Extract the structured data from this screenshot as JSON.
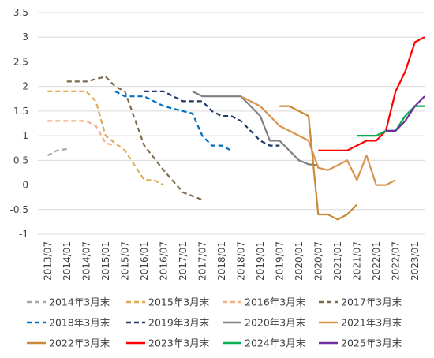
{
  "chart_data": {
    "type": "line",
    "title": "",
    "xlabel": "",
    "ylabel": "",
    "ylim": [
      -1,
      3.5
    ],
    "yticks": [
      "-1",
      "-0.5",
      "0",
      "0.5",
      "1",
      "1.5",
      "2",
      "2.5",
      "3",
      "3.5"
    ],
    "xlim": [
      "2013-07",
      "2023-01"
    ],
    "xticks": [
      "2013/07",
      "2014/01",
      "2014/07",
      "2015/01",
      "2015/07",
      "2016/01",
      "2016/07",
      "2017/01",
      "2017/07",
      "2018/01",
      "2018/07",
      "2019/01",
      "2019/07",
      "2020/01",
      "2020/07",
      "2021/01",
      "2021/07",
      "2022/01",
      "2022/07",
      "2023/01"
    ],
    "grid": "horizontal",
    "legend_position": "bottom",
    "series": [
      {
        "name": "2014年3月末",
        "color": "#a6a6a6",
        "dash": "dash",
        "points": [
          [
            "2013-07",
            0.6
          ],
          [
            "2013-10",
            0.7
          ],
          [
            "2014-01",
            0.73
          ]
        ]
      },
      {
        "name": "2015年3月末",
        "color": "#e0a94f",
        "dash": "dash",
        "points": [
          [
            "2013-07",
            1.9
          ],
          [
            "2014-01",
            1.9
          ],
          [
            "2014-07",
            1.9
          ],
          [
            "2014-10",
            1.7
          ],
          [
            "2015-01",
            1.0
          ],
          [
            "2015-04",
            0.85
          ],
          [
            "2015-07",
            0.7
          ],
          [
            "2016-01",
            0.1
          ],
          [
            "2016-04",
            0.1
          ],
          [
            "2016-07",
            0.0
          ]
        ]
      },
      {
        "name": "2016年3月末",
        "color": "#f4b183",
        "dash": "dash",
        "points": [
          [
            "2013-07",
            1.3
          ],
          [
            "2014-01",
            1.3
          ],
          [
            "2014-07",
            1.3
          ],
          [
            "2014-10",
            1.2
          ],
          [
            "2015-01",
            0.85
          ],
          [
            "2015-04",
            0.8
          ]
        ]
      },
      {
        "name": "2017年3月末",
        "color": "#7f6a4d",
        "dash": "dash",
        "points": [
          [
            "2014-01",
            2.1
          ],
          [
            "2014-07",
            2.1
          ],
          [
            "2015-01",
            2.2
          ],
          [
            "2015-04",
            2.0
          ],
          [
            "2015-07",
            1.9
          ],
          [
            "2016-01",
            0.8
          ],
          [
            "2016-07",
            0.3
          ],
          [
            "2017-01",
            -0.15
          ],
          [
            "2017-07",
            -0.3
          ]
        ]
      },
      {
        "name": "2018年3月末",
        "color": "#0070c0",
        "dash": "dash",
        "points": [
          [
            "2015-04",
            1.9
          ],
          [
            "2015-07",
            1.8
          ],
          [
            "2016-01",
            1.8
          ],
          [
            "2016-07",
            1.6
          ],
          [
            "2017-01",
            1.5
          ],
          [
            "2017-04",
            1.45
          ],
          [
            "2017-07",
            1.0
          ],
          [
            "2017-10",
            0.8
          ],
          [
            "2018-01",
            0.8
          ],
          [
            "2018-04",
            0.7
          ]
        ]
      },
      {
        "name": "2019年3月末",
        "color": "#1f3864",
        "dash": "dash",
        "points": [
          [
            "2016-01",
            1.9
          ],
          [
            "2016-07",
            1.9
          ],
          [
            "2017-01",
            1.7
          ],
          [
            "2017-07",
            1.7
          ],
          [
            "2017-10",
            1.5
          ],
          [
            "2018-01",
            1.4
          ],
          [
            "2018-04",
            1.4
          ],
          [
            "2018-07",
            1.3
          ],
          [
            "2019-01",
            0.9
          ],
          [
            "2019-04",
            0.8
          ],
          [
            "2019-07",
            0.8
          ]
        ]
      },
      {
        "name": "2020年3月末",
        "color": "#7f7f7f",
        "dash": "solid",
        "points": [
          [
            "2017-04",
            1.9
          ],
          [
            "2017-07",
            1.8
          ],
          [
            "2018-01",
            1.8
          ],
          [
            "2018-07",
            1.8
          ],
          [
            "2019-01",
            1.4
          ],
          [
            "2019-04",
            0.9
          ],
          [
            "2019-07",
            0.9
          ],
          [
            "2020-01",
            0.5
          ],
          [
            "2020-04",
            0.42
          ],
          [
            "2020-07",
            0.4
          ]
        ]
      },
      {
        "name": "2021年3月末",
        "color": "#d8944e",
        "dash": "solid",
        "points": [
          [
            "2018-07",
            1.8
          ],
          [
            "2019-01",
            1.6
          ],
          [
            "2019-07",
            1.2
          ],
          [
            "2020-01",
            1.0
          ],
          [
            "2020-04",
            0.9
          ],
          [
            "2020-07",
            0.35
          ],
          [
            "2020-10",
            0.3
          ],
          [
            "2021-01",
            0.4
          ],
          [
            "2021-04",
            0.5
          ],
          [
            "2021-07",
            0.1
          ],
          [
            "2021-10",
            0.6
          ],
          [
            "2022-01",
            0.0
          ],
          [
            "2022-04",
            0.0
          ],
          [
            "2022-07",
            0.1
          ]
        ]
      },
      {
        "name": "2022年3月末",
        "color": "#c88a3a",
        "dash": "solid",
        "points": [
          [
            "2019-07",
            1.6
          ],
          [
            "2019-10",
            1.6
          ],
          [
            "2020-01",
            1.5
          ],
          [
            "2020-04",
            1.4
          ],
          [
            "2020-07",
            -0.6
          ],
          [
            "2020-10",
            -0.6
          ],
          [
            "2021-01",
            -0.7
          ],
          [
            "2021-04",
            -0.6
          ],
          [
            "2021-07",
            -0.4
          ]
        ]
      },
      {
        "name": "2023年3月末",
        "color": "#ff0000",
        "dash": "solid",
        "points": [
          [
            "2020-07",
            0.7
          ],
          [
            "2021-01",
            0.7
          ],
          [
            "2021-04",
            0.7
          ],
          [
            "2021-07",
            0.8
          ],
          [
            "2021-10",
            0.9
          ],
          [
            "2022-01",
            0.9
          ],
          [
            "2022-04",
            1.1
          ],
          [
            "2022-07",
            1.9
          ],
          [
            "2022-10",
            2.3
          ],
          [
            "2023-01",
            2.9
          ],
          [
            "2023-04",
            3.0
          ]
        ]
      },
      {
        "name": "2024年3月末",
        "color": "#00b050",
        "dash": "solid",
        "points": [
          [
            "2021-07",
            1.0
          ],
          [
            "2022-01",
            1.0
          ],
          [
            "2022-04",
            1.1
          ],
          [
            "2022-07",
            1.1
          ],
          [
            "2022-10",
            1.4
          ],
          [
            "2023-01",
            1.6
          ],
          [
            "2023-04",
            1.6
          ]
        ]
      },
      {
        "name": "2025年3月末",
        "color": "#7030a0",
        "dash": "solid",
        "points": [
          [
            "2022-04",
            1.1
          ],
          [
            "2022-07",
            1.1
          ],
          [
            "2022-10",
            1.3
          ],
          [
            "2023-01",
            1.6
          ],
          [
            "2023-04",
            1.8
          ]
        ]
      }
    ]
  }
}
